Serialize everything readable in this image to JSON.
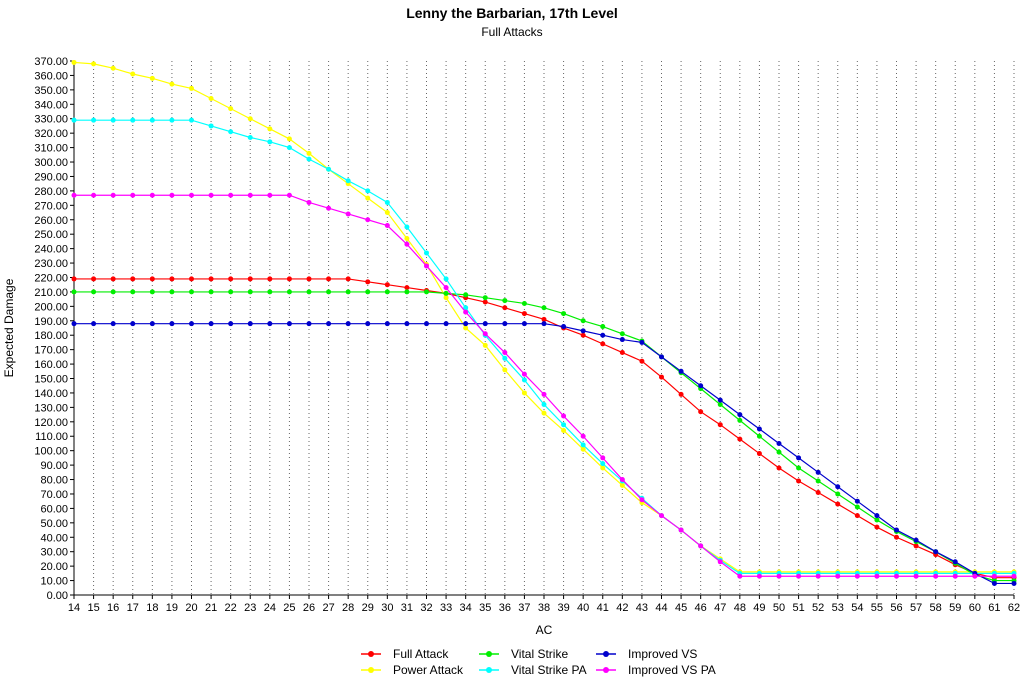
{
  "chart_data": {
    "type": "line",
    "title": "Lenny the Barbarian, 17th Level",
    "subtitle": "Full Attacks",
    "xlabel": "AC",
    "ylabel": "Expected Damage",
    "xlim": [
      14,
      62
    ],
    "ylim": [
      0,
      370
    ],
    "ytick_step": 10,
    "grid": "vertical dotted",
    "legend_position": "bottom",
    "x": [
      14,
      15,
      16,
      17,
      18,
      19,
      20,
      21,
      22,
      23,
      24,
      25,
      26,
      27,
      28,
      29,
      30,
      31,
      32,
      33,
      34,
      35,
      36,
      37,
      38,
      39,
      40,
      41,
      42,
      43,
      44,
      45,
      46,
      47,
      48,
      49,
      50,
      51,
      52,
      53,
      54,
      55,
      56,
      57,
      58,
      59,
      60,
      61,
      62
    ],
    "series": [
      {
        "name": "Full Attack",
        "color": "#ff0000",
        "values": [
          219,
          219,
          219,
          219,
          219,
          219,
          219,
          219,
          219,
          219,
          219,
          219,
          219,
          219,
          219,
          217,
          215,
          213,
          211,
          209,
          206,
          203,
          199,
          195,
          191,
          185,
          180,
          174,
          168,
          162,
          151,
          139,
          127,
          118,
          108,
          98,
          88,
          79,
          71,
          63,
          55,
          47,
          40,
          34,
          28,
          21,
          15,
          12,
          12
        ]
      },
      {
        "name": "Power Attack",
        "color": "#ffff00",
        "values": [
          369,
          368,
          365,
          361,
          358,
          354,
          351,
          344,
          337,
          330,
          323,
          316,
          306,
          295,
          285,
          275,
          265,
          247,
          229,
          206,
          185,
          173,
          156,
          140,
          126,
          114,
          101,
          88,
          76,
          64,
          55,
          45,
          34,
          25,
          16,
          16,
          16,
          16,
          16,
          16,
          16,
          16,
          16,
          16,
          16,
          16,
          16,
          16,
          16
        ]
      },
      {
        "name": "Vital Strike",
        "color": "#00ee00",
        "values": [
          210,
          210,
          210,
          210,
          210,
          210,
          210,
          210,
          210,
          210,
          210,
          210,
          210,
          210,
          210,
          210,
          210,
          210,
          210,
          209,
          208,
          206,
          204,
          202,
          199,
          195,
          190,
          186,
          181,
          176,
          165,
          154,
          143,
          132,
          121,
          110,
          99,
          88,
          79,
          70,
          61,
          52,
          44,
          37,
          30,
          22,
          14,
          10,
          10
        ]
      },
      {
        "name": "Vital Strike PA",
        "color": "#00ffff",
        "values": [
          329,
          329,
          329,
          329,
          329,
          329,
          329,
          325,
          321,
          317,
          314,
          310,
          302,
          295,
          287,
          280,
          272,
          255,
          237,
          219,
          199,
          180,
          164,
          149,
          132,
          118,
          104,
          91,
          79,
          67,
          55,
          45,
          34,
          24,
          15,
          15,
          15,
          15,
          15,
          15,
          15,
          15,
          15,
          15,
          15,
          15,
          15,
          15,
          15
        ]
      },
      {
        "name": "Improved VS",
        "color": "#0000cc",
        "values": [
          188,
          188,
          188,
          188,
          188,
          188,
          188,
          188,
          188,
          188,
          188,
          188,
          188,
          188,
          188,
          188,
          188,
          188,
          188,
          188,
          188,
          188,
          188,
          188,
          188,
          186,
          183,
          180,
          177,
          175,
          165,
          155,
          145,
          135,
          125,
          115,
          105,
          95,
          85,
          75,
          65,
          55,
          45,
          38,
          30,
          23,
          15,
          8,
          8
        ]
      },
      {
        "name": "Improved VS PA",
        "color": "#ff00ff",
        "values": [
          277,
          277,
          277,
          277,
          277,
          277,
          277,
          277,
          277,
          277,
          277,
          277,
          272,
          268,
          264,
          260,
          256,
          243,
          228,
          213,
          196,
          181,
          168,
          153,
          139,
          124,
          110,
          95,
          80,
          66,
          55,
          45,
          34,
          23,
          13,
          13,
          13,
          13,
          13,
          13,
          13,
          13,
          13,
          13,
          13,
          13,
          13,
          13,
          13
        ]
      }
    ]
  }
}
